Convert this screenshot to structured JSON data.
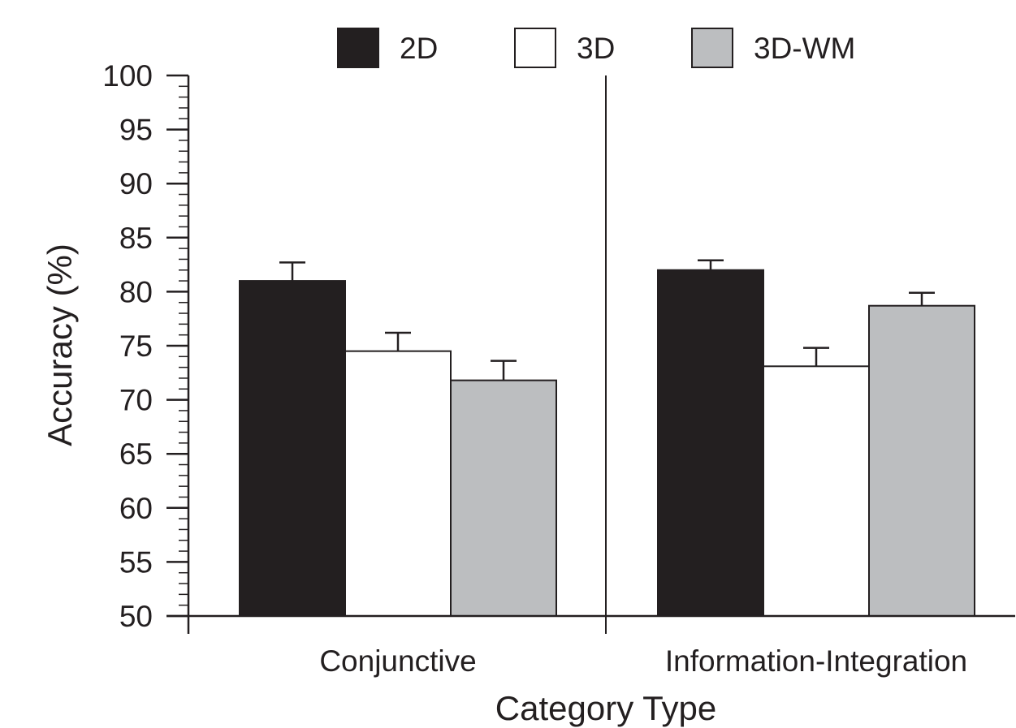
{
  "chart_data": {
    "type": "bar",
    "categories": [
      "Conjunctive",
      "Information-Integration"
    ],
    "series": [
      {
        "name": "2D",
        "values": [
          81.0,
          82.0
        ],
        "error": [
          1.7,
          0.9
        ],
        "color": "#231f20"
      },
      {
        "name": "3D",
        "values": [
          74.5,
          73.1
        ],
        "error": [
          1.7,
          1.7
        ],
        "color": "#ffffff"
      },
      {
        "name": "3D-WM",
        "values": [
          71.8,
          78.7
        ],
        "error": [
          1.8,
          1.2
        ],
        "color": "#bcbec0"
      }
    ],
    "xlabel": "Category Type",
    "ylabel": "Accuracy (%)",
    "ylim": [
      50,
      100
    ],
    "yticks": [
      50,
      55,
      60,
      65,
      70,
      75,
      80,
      85,
      90,
      95,
      100
    ],
    "y_minor_step": 1,
    "grid": false,
    "legend_position": "top",
    "group_divider": true
  }
}
